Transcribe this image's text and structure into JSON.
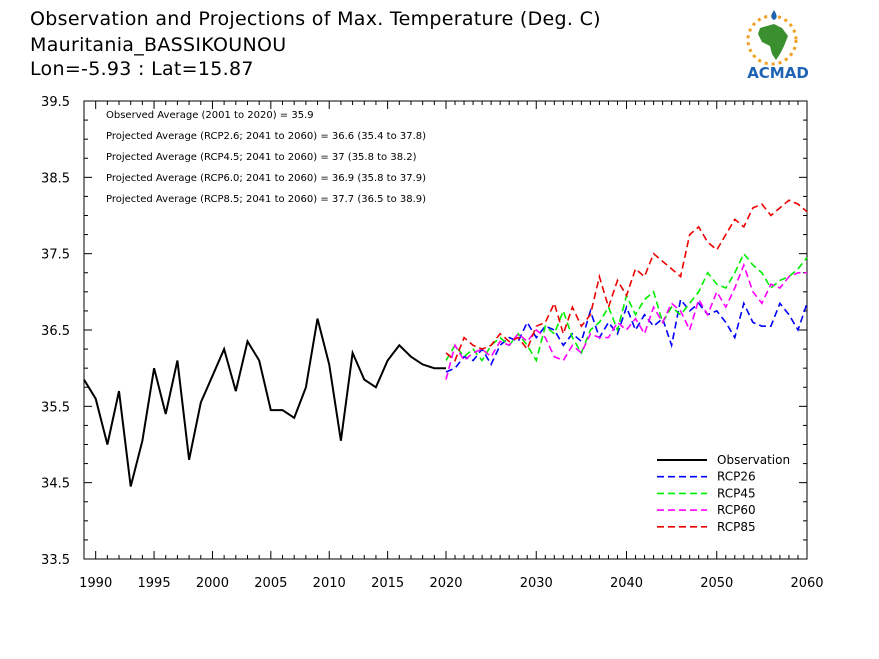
{
  "header": {
    "title": "Observation and Projections of Max. Temperature (Deg. C)",
    "station": "Mauritania_BASSIKOUNOU",
    "coords": "Lon=-5.93 : Lat=15.87"
  },
  "logo": {
    "text": "ACMAD",
    "icon": "africa-sun-logo-icon",
    "color_text": "#1f63b5",
    "color_africa": "#3a8f2f",
    "color_sun": "#f0a020"
  },
  "colors": {
    "Observation": "#000000",
    "RCP26": "#0000ff",
    "RCP45": "#00ee00",
    "RCP60": "#ff00ff",
    "RCP85": "#ee0000"
  },
  "chart_data": {
    "type": "line",
    "ylim": [
      33.5,
      39.5
    ],
    "yticks": [
      33.5,
      34.5,
      35.5,
      36.5,
      37.5,
      38.5,
      39.5
    ],
    "ytick_labels": [
      "33.5",
      "34.5",
      "35.5",
      "36.5",
      "37.5",
      "38.5",
      "39.5"
    ],
    "xticks": [
      1990,
      1995,
      2000,
      2005,
      2010,
      2015,
      2020,
      2030,
      2040,
      2050,
      2060
    ],
    "xtick_labels": [
      "1990",
      "1995",
      "2000",
      "2005",
      "2010",
      "2015",
      "2020",
      "2030",
      "2040",
      "2050",
      "2060"
    ],
    "annotations": [
      "Observed Average (2001 to 2020) = 35.9",
      "Projected Average (RCP2.6; 2041 to 2060) = 36.6 (35.4 to 37.8)",
      "Projected Average (RCP4.5; 2041 to 2060) = 37 (35.8 to 38.2)",
      "Projected Average (RCP6.0; 2041 to 2060) = 36.9 (35.8 to 37.9)",
      "Projected Average (RCP8.5; 2041 to 2060) = 37.7 (36.5 to 38.9)"
    ],
    "legend": [
      "Observation",
      "RCP26",
      "RCP45",
      "RCP60",
      "RCP85"
    ],
    "legend_position": "bottom-right",
    "series": [
      {
        "name": "Observation",
        "x": [
          1989,
          1990,
          1991,
          1992,
          1993,
          1994,
          1995,
          1996,
          1997,
          1998,
          1999,
          2000,
          2001,
          2002,
          2003,
          2004,
          2005,
          2006,
          2007,
          2008,
          2009,
          2010,
          2011,
          2012,
          2013,
          2014,
          2015,
          2016,
          2017,
          2018,
          2019,
          2020
        ],
        "values": [
          35.85,
          35.6,
          35.0,
          35.7,
          34.45,
          35.05,
          36.0,
          35.4,
          36.1,
          34.8,
          35.55,
          35.9,
          36.25,
          35.7,
          36.35,
          36.1,
          35.45,
          35.45,
          35.35,
          35.75,
          36.65,
          36.05,
          35.05,
          36.2,
          35.85,
          35.75,
          36.1,
          36.3,
          36.15,
          36.05,
          36.0,
          36.0
        ]
      },
      {
        "name": "RCP26",
        "x": [
          2020,
          2021,
          2022,
          2023,
          2024,
          2025,
          2026,
          2027,
          2028,
          2029,
          2030,
          2031,
          2032,
          2033,
          2034,
          2035,
          2036,
          2037,
          2038,
          2039,
          2040,
          2041,
          2042,
          2043,
          2044,
          2045,
          2046,
          2047,
          2048,
          2049,
          2050,
          2051,
          2052,
          2053,
          2054,
          2055,
          2056,
          2057,
          2058,
          2059,
          2060
        ],
        "values": [
          35.95,
          36.0,
          36.15,
          36.1,
          36.25,
          36.05,
          36.3,
          36.4,
          36.35,
          36.6,
          36.4,
          36.55,
          36.5,
          36.3,
          36.45,
          36.35,
          36.75,
          36.4,
          36.6,
          36.45,
          36.8,
          36.5,
          36.7,
          36.55,
          36.65,
          36.3,
          36.9,
          36.75,
          36.85,
          36.7,
          36.75,
          36.6,
          36.4,
          36.85,
          36.6,
          36.55,
          36.55,
          36.85,
          36.7,
          36.5,
          36.85
        ]
      },
      {
        "name": "RCP45",
        "x": [
          2020,
          2021,
          2022,
          2023,
          2024,
          2025,
          2026,
          2027,
          2028,
          2029,
          2030,
          2031,
          2032,
          2033,
          2034,
          2035,
          2036,
          2037,
          2038,
          2039,
          2040,
          2041,
          2042,
          2043,
          2044,
          2045,
          2046,
          2047,
          2048,
          2049,
          2050,
          2051,
          2052,
          2053,
          2054,
          2055,
          2056,
          2057,
          2058,
          2059,
          2060
        ],
        "values": [
          36.1,
          36.3,
          36.15,
          36.25,
          36.1,
          36.3,
          36.4,
          36.3,
          36.45,
          36.3,
          36.1,
          36.55,
          36.45,
          36.75,
          36.4,
          36.2,
          36.5,
          36.6,
          36.8,
          36.5,
          36.95,
          36.7,
          36.9,
          37.0,
          36.6,
          36.8,
          36.7,
          36.85,
          37.0,
          37.25,
          37.1,
          37.05,
          37.25,
          37.5,
          37.35,
          37.25,
          37.05,
          37.15,
          37.2,
          37.3,
          37.45
        ]
      },
      {
        "name": "RCP60",
        "x": [
          2020,
          2021,
          2022,
          2023,
          2024,
          2025,
          2026,
          2027,
          2028,
          2029,
          2030,
          2031,
          2032,
          2033,
          2034,
          2035,
          2036,
          2037,
          2038,
          2039,
          2040,
          2041,
          2042,
          2043,
          2044,
          2045,
          2046,
          2047,
          2048,
          2049,
          2050,
          2051,
          2052,
          2053,
          2054,
          2055,
          2056,
          2057,
          2058,
          2059,
          2060
        ],
        "values": [
          35.85,
          36.3,
          36.1,
          36.2,
          36.25,
          36.15,
          36.35,
          36.3,
          36.45,
          36.35,
          36.5,
          36.4,
          36.15,
          36.1,
          36.3,
          36.2,
          36.45,
          36.4,
          36.4,
          36.6,
          36.5,
          36.65,
          36.45,
          36.8,
          36.6,
          36.85,
          36.75,
          36.5,
          36.9,
          36.7,
          37.0,
          36.8,
          37.05,
          37.35,
          37.0,
          36.85,
          37.1,
          37.05,
          37.2,
          37.25,
          37.25
        ]
      },
      {
        "name": "RCP85",
        "x": [
          2020,
          2021,
          2022,
          2023,
          2024,
          2025,
          2026,
          2027,
          2028,
          2029,
          2030,
          2031,
          2032,
          2033,
          2034,
          2035,
          2036,
          2037,
          2038,
          2039,
          2040,
          2041,
          2042,
          2043,
          2044,
          2045,
          2046,
          2047,
          2048,
          2049,
          2050,
          2051,
          2052,
          2053,
          2054,
          2055,
          2056,
          2057,
          2058,
          2059,
          2060
        ],
        "values": [
          36.2,
          36.1,
          36.4,
          36.3,
          36.25,
          36.3,
          36.45,
          36.35,
          36.4,
          36.25,
          36.55,
          36.6,
          36.85,
          36.45,
          36.8,
          36.55,
          36.7,
          37.2,
          36.8,
          37.15,
          36.95,
          37.3,
          37.2,
          37.5,
          37.4,
          37.3,
          37.2,
          37.75,
          37.85,
          37.65,
          37.55,
          37.75,
          37.95,
          37.85,
          38.1,
          38.15,
          38.0,
          38.1,
          38.2,
          38.15,
          38.05
        ]
      }
    ]
  }
}
